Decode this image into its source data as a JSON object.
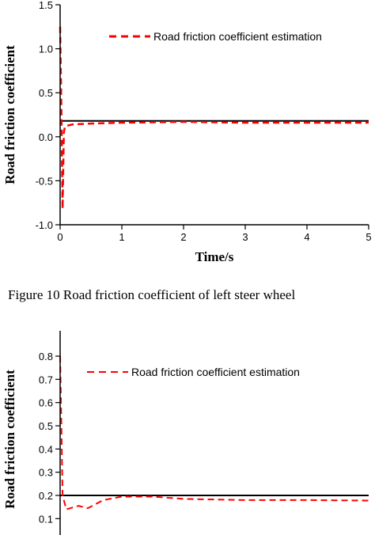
{
  "chart_data": [
    {
      "type": "line",
      "ylabel": "Road friction coefficient",
      "xlabel": "Time/s",
      "xlim": [
        0,
        5
      ],
      "ylim": [
        -1.0,
        1.5
      ],
      "xticks": [
        "0",
        "1",
        "2",
        "3",
        "4",
        "5"
      ],
      "yticks": [
        "-1.0",
        "-0.5",
        "0.0",
        "0.5",
        "1.0",
        "1.5"
      ],
      "legend": {
        "placement": "top-right",
        "entries": [
          "Road friction coefficient estimation"
        ]
      },
      "series": [
        {
          "values": [
            [
              0,
              0.18
            ],
            [
              5,
              0.18
            ]
          ],
          "color": "#000000",
          "style": "solid"
        },
        {
          "name": "Road friction coefficient estimation",
          "color": "#ff0000",
          "style": "dashed",
          "values": [
            [
              0.0,
              1.25
            ],
            [
              0.02,
              0.3
            ],
            [
              0.04,
              -0.82
            ],
            [
              0.06,
              0.05
            ],
            [
              0.08,
              0.12
            ],
            [
              0.2,
              0.14
            ],
            [
              0.5,
              0.15
            ],
            [
              1.0,
              0.16
            ],
            [
              2.0,
              0.17
            ],
            [
              3.0,
              0.16
            ],
            [
              4.0,
              0.16
            ],
            [
              5.0,
              0.16
            ]
          ]
        }
      ],
      "caption": "Figure 10 Road friction coefficient of left steer wheel"
    },
    {
      "type": "line",
      "ylabel": "Road friction coefficient",
      "ylim": [
        0.08,
        0.85
      ],
      "yticks": [
        "0.1",
        "0.2",
        "0.3",
        "0.4",
        "0.5",
        "0.6",
        "0.7",
        "0.8"
      ],
      "legend": {
        "placement": "top-right",
        "entries": [
          "Road friction coefficient estimation"
        ]
      },
      "series": [
        {
          "values": [
            [
              0,
              0.2
            ],
            [
              5,
              0.2
            ]
          ],
          "color": "#000000",
          "style": "solid"
        },
        {
          "name": "Road friction coefficient estimation",
          "color": "#ff0000",
          "style": "dashed",
          "values": [
            [
              0.0,
              0.8
            ],
            [
              0.02,
              0.5
            ],
            [
              0.04,
              0.2
            ],
            [
              0.1,
              0.14
            ],
            [
              0.3,
              0.155
            ],
            [
              0.45,
              0.145
            ],
            [
              0.7,
              0.18
            ],
            [
              1.0,
              0.195
            ],
            [
              1.5,
              0.195
            ],
            [
              2.0,
              0.185
            ],
            [
              3.0,
              0.18
            ],
            [
              4.0,
              0.18
            ],
            [
              5.0,
              0.178
            ]
          ]
        }
      ]
    }
  ]
}
